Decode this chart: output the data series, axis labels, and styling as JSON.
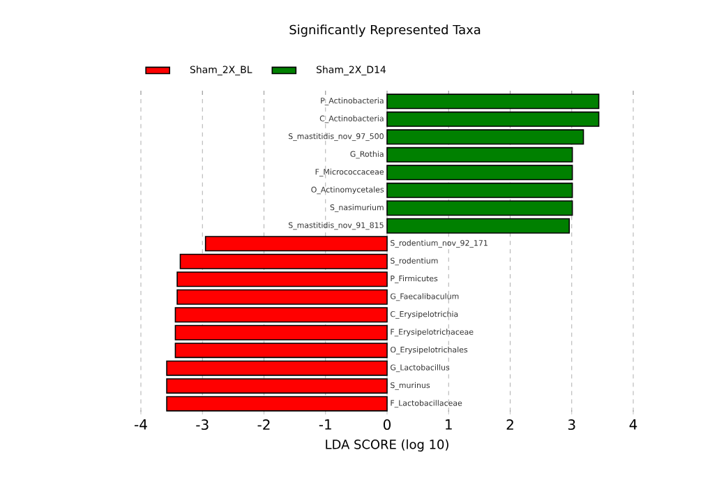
{
  "chart_data": {
    "type": "bar",
    "orientation": "horizontal",
    "title": "Significantly Represented Taxa",
    "xlabel": "LDA SCORE (log 10)",
    "categories": [
      "P_Actinobacteria",
      "C_Actinobacteria",
      "S_mastitidis_nov_97_500",
      "G_Rothia",
      "F_Micrococcaceae",
      "O_Actinomycetales",
      "S_nasimurium",
      "S_mastitidis_nov_91_815",
      "S_rodentium_nov_92_171",
      "S_rodentium",
      "P_Firmicutes",
      "G_Faecalibaculum",
      "C_Erysipelotrichia",
      "F_Erysipelotrichaceae",
      "O_Erysipelotrichales",
      "G_Lactobacillus",
      "S_murinus",
      "F_Lactobacillaceae"
    ],
    "series": [
      {
        "name": "Sham_2X_BL",
        "color": "#ff0000",
        "values": [
          null,
          null,
          null,
          null,
          null,
          null,
          null,
          null,
          -2.95,
          -3.36,
          -3.41,
          -3.41,
          -3.44,
          -3.44,
          -3.44,
          -3.58,
          -3.58,
          -3.58
        ]
      },
      {
        "name": "Sham_2X_D14",
        "color": "#008000",
        "values": [
          3.44,
          3.44,
          3.19,
          3.01,
          3.01,
          3.01,
          3.01,
          2.96,
          null,
          null,
          null,
          null,
          null,
          null,
          null,
          null,
          null,
          null
        ]
      }
    ],
    "xlim": [
      -4,
      4
    ],
    "xticks": [
      -4,
      -3,
      -2,
      -1,
      0,
      1,
      2,
      3,
      4
    ],
    "grid": "x",
    "legend": "top left"
  }
}
